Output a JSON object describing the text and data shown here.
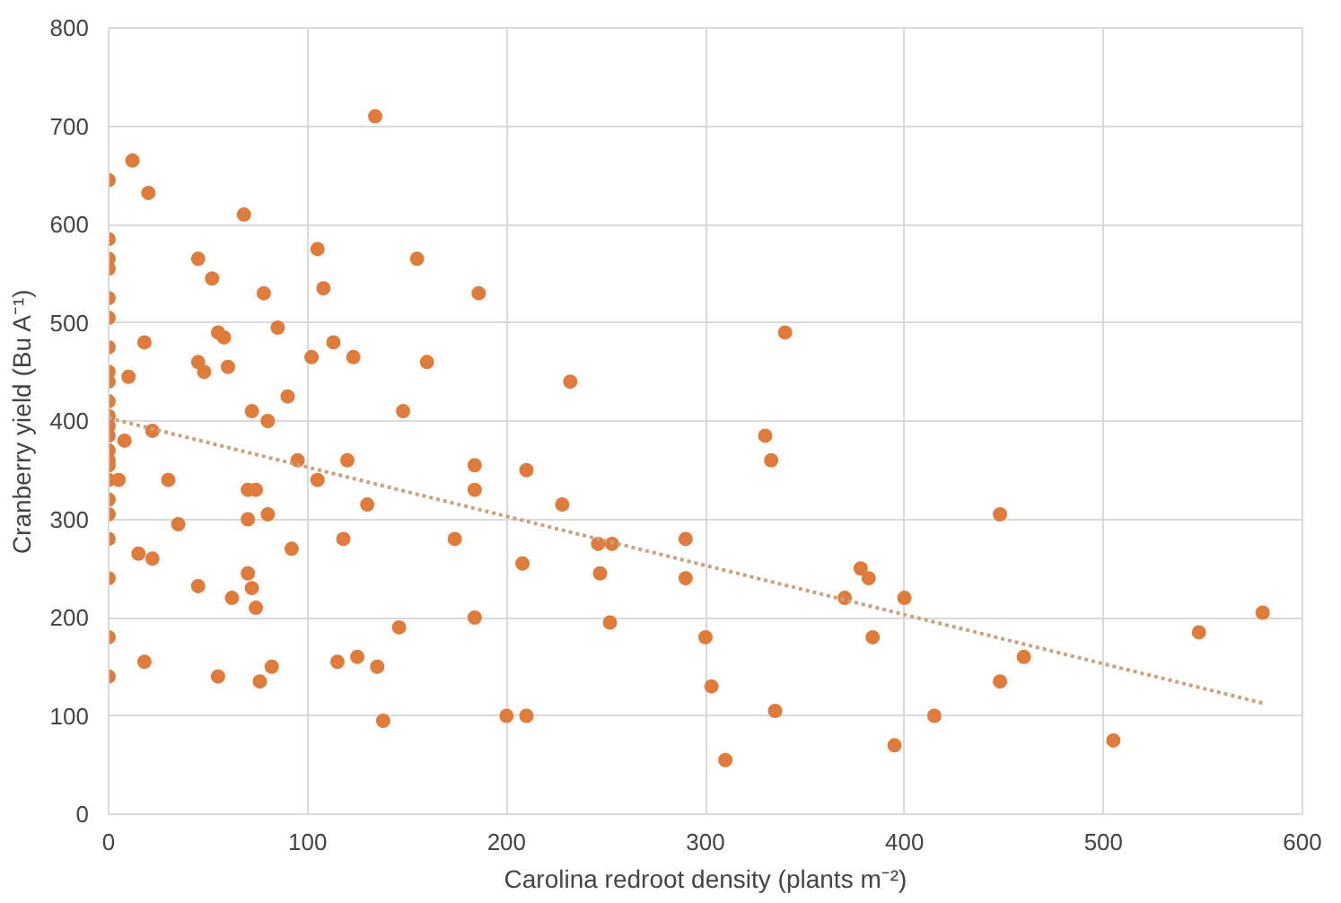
{
  "chart_data": {
    "type": "scatter",
    "xlabel": "Carolina redroot density (plants m⁻²)",
    "ylabel": "Cranberry yield (Bu A⁻¹)",
    "xlim": [
      0,
      600
    ],
    "xticks": [
      0,
      100,
      200,
      300,
      400,
      500,
      600
    ],
    "ylim": [
      0,
      800
    ],
    "yticks": [
      0,
      100,
      200,
      300,
      400,
      500,
      600,
      700,
      800
    ],
    "grid": true,
    "marker": "circle",
    "series": [
      {
        "color": "#e07b39",
        "x": [
          0,
          0,
          0,
          0,
          0,
          0,
          0,
          0,
          0,
          0,
          0,
          0,
          0,
          0,
          0,
          0,
          0,
          0,
          0,
          0,
          0,
          0,
          0,
          12,
          20,
          10,
          8,
          5,
          15,
          18,
          22,
          30,
          35,
          18,
          22,
          45,
          45,
          48,
          45,
          52,
          55,
          55,
          58,
          60,
          62,
          68,
          70,
          70,
          70,
          72,
          72,
          74,
          74,
          76,
          78,
          80,
          80,
          82,
          85,
          90,
          92,
          95,
          102,
          105,
          108,
          105,
          113,
          115,
          118,
          120,
          123,
          125,
          130,
          134,
          135,
          138,
          146,
          148,
          155,
          160,
          174,
          184,
          184,
          186,
          184,
          200,
          208,
          210,
          210,
          228,
          232,
          246,
          247,
          252,
          253,
          290,
          290,
          300,
          303,
          310,
          330,
          333,
          335,
          340,
          370,
          378,
          382,
          384,
          395,
          400,
          415,
          448,
          448,
          460,
          505,
          548,
          580
        ],
        "values": [
          645,
          585,
          565,
          555,
          525,
          505,
          475,
          450,
          440,
          420,
          405,
          395,
          385,
          370,
          360,
          355,
          340,
          320,
          305,
          280,
          240,
          180,
          140,
          665,
          632,
          445,
          380,
          340,
          265,
          480,
          390,
          340,
          295,
          155,
          260,
          565,
          460,
          450,
          232,
          545,
          490,
          140,
          485,
          455,
          220,
          610,
          330,
          300,
          245,
          410,
          230,
          330,
          210,
          135,
          530,
          400,
          305,
          150,
          495,
          425,
          270,
          360,
          465,
          575,
          535,
          340,
          480,
          155,
          280,
          360,
          465,
          160,
          315,
          710,
          150,
          95,
          190,
          410,
          565,
          460,
          280,
          355,
          330,
          530,
          200,
          100,
          255,
          350,
          100,
          315,
          440,
          275,
          245,
          195,
          275,
          240,
          280,
          180,
          130,
          55,
          385,
          360,
          105,
          490,
          220,
          250,
          240,
          180,
          70,
          220,
          100,
          135,
          305,
          160,
          75,
          185,
          205
        ]
      },
      {
        "type": "line",
        "color": "#c9a27e",
        "line_style": "dotted",
        "marker": "none",
        "x": [
          0,
          580
        ],
        "values": [
          403,
          113
        ]
      }
    ]
  }
}
